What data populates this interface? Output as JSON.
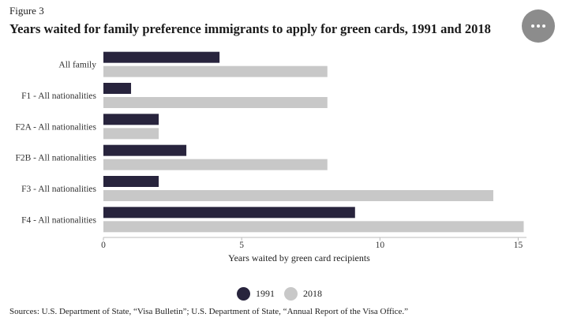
{
  "figure_label": "Figure 3",
  "menu": {
    "icon": "more-horizontal-icon"
  },
  "sources": "Sources: U.S. Department of State, “Visa Bulletin”; U.S. Department of State, “Annual Report of the Visa Office.”",
  "chart_data": {
    "type": "bar",
    "orientation": "horizontal",
    "title": "Years waited for family preference immigrants to apply for green cards, 1991 and 2018",
    "xlabel": "Years waited by green card recipients",
    "ylabel": "",
    "xlim": [
      0,
      15.3
    ],
    "xticks": [
      0,
      5,
      10,
      15
    ],
    "legend_position": "bottom",
    "categories": [
      "All family",
      "F1 - All nationalities",
      "F2A - All nationalities",
      "F2B - All nationalities",
      "F3 - All nationalities",
      "F4 - All nationalities"
    ],
    "series": [
      {
        "name": "1991",
        "color": "#28243d",
        "values": [
          4.2,
          1.0,
          2.0,
          3.0,
          2.0,
          9.1
        ]
      },
      {
        "name": "2018",
        "color": "#c8c8c8",
        "values": [
          8.1,
          8.1,
          2.0,
          8.1,
          14.1,
          15.2
        ]
      }
    ]
  }
}
